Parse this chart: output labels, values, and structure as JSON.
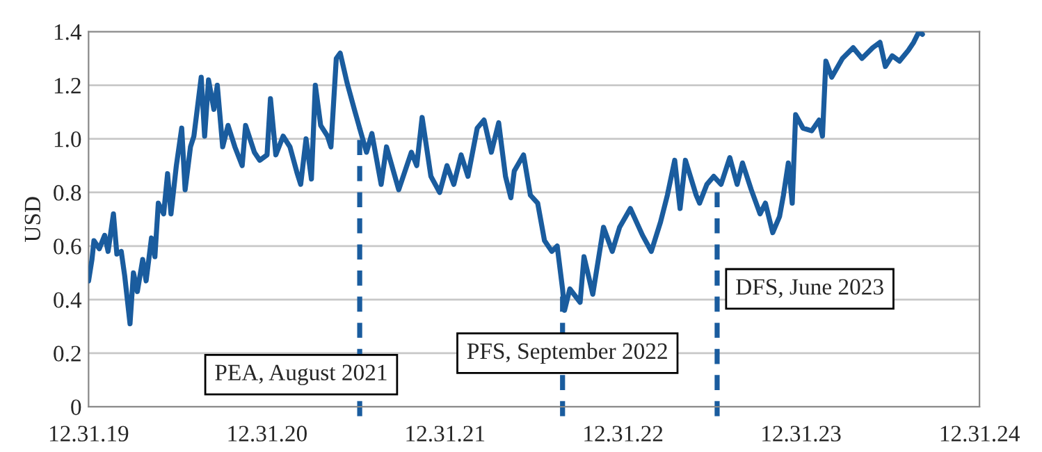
{
  "chart_data": {
    "type": "line",
    "ylabel": "USD",
    "x": [
      "2019-12-31",
      "2020-01-07",
      "2020-01-11",
      "2020-01-22",
      "2020-02-02",
      "2020-02-09",
      "2020-02-20",
      "2020-02-27",
      "2020-03-07",
      "2020-03-14",
      "2020-03-25",
      "2020-04-01",
      "2020-04-09",
      "2020-04-20",
      "2020-04-27",
      "2020-05-08",
      "2020-05-15",
      "2020-05-22",
      "2020-06-02",
      "2020-06-10",
      "2020-06-17",
      "2020-06-28",
      "2020-07-09",
      "2020-07-16",
      "2020-07-27",
      "2020-08-03",
      "2020-08-18",
      "2020-08-25",
      "2020-09-02",
      "2020-09-13",
      "2020-09-20",
      "2020-10-01",
      "2020-10-12",
      "2020-10-26",
      "2020-11-10",
      "2020-11-17",
      "2020-12-05",
      "2020-12-16",
      "2020-12-31",
      "2021-01-07",
      "2021-01-18",
      "2021-02-02",
      "2021-02-16",
      "2021-03-03",
      "2021-03-10",
      "2021-03-21",
      "2021-04-01",
      "2021-04-09",
      "2021-04-20",
      "2021-05-04",
      "2021-05-11",
      "2021-05-22",
      "2021-05-30",
      "2021-06-13",
      "2021-06-28",
      "2021-07-12",
      "2021-07-23",
      "2021-08-03",
      "2021-08-22",
      "2021-09-02",
      "2021-09-27",
      "2021-10-23",
      "2021-11-03",
      "2021-11-14",
      "2021-12-02",
      "2021-12-20",
      "2022-01-04",
      "2022-01-18",
      "2022-02-02",
      "2022-02-16",
      "2022-03-07",
      "2022-03-21",
      "2022-04-05",
      "2022-04-20",
      "2022-05-04",
      "2022-05-15",
      "2022-05-22",
      "2022-06-10",
      "2022-06-24",
      "2022-07-09",
      "2022-07-23",
      "2022-08-07",
      "2022-08-18",
      "2022-08-29",
      "2022-09-02",
      "2022-09-13",
      "2022-10-04",
      "2022-10-12",
      "2022-10-30",
      "2022-11-21",
      "2022-12-09",
      "2022-12-24",
      "2023-01-15",
      "2023-02-09",
      "2023-02-27",
      "2023-03-18",
      "2023-04-01",
      "2023-04-16",
      "2023-04-27",
      "2023-05-08",
      "2023-05-30",
      "2023-06-06",
      "2023-06-21",
      "2023-07-05",
      "2023-07-20",
      "2023-08-07",
      "2023-08-22",
      "2023-09-02",
      "2023-09-20",
      "2023-10-08",
      "2023-10-19",
      "2023-11-03",
      "2023-11-17",
      "2023-11-25",
      "2023-12-05",
      "2023-12-13",
      "2023-12-20",
      "2024-01-04",
      "2024-01-22",
      "2024-02-06",
      "2024-02-13",
      "2024-02-20",
      "2024-03-03",
      "2024-03-25",
      "2024-04-16",
      "2024-05-04",
      "2024-05-26",
      "2024-06-10",
      "2024-06-21",
      "2024-07-05",
      "2024-07-20",
      "2024-08-07",
      "2024-08-18",
      "2024-08-29",
      "2024-09-05"
    ],
    "series": [
      {
        "color": "#1a5c9e",
        "values": [
          0.47,
          0.55,
          0.62,
          0.59,
          0.64,
          0.58,
          0.72,
          0.57,
          0.58,
          0.49,
          0.31,
          0.5,
          0.43,
          0.55,
          0.47,
          0.63,
          0.56,
          0.76,
          0.72,
          0.87,
          0.72,
          0.9,
          1.04,
          0.81,
          0.97,
          1.01,
          1.23,
          1.01,
          1.22,
          1.11,
          1.2,
          0.97,
          1.05,
          0.97,
          0.9,
          1.05,
          0.95,
          0.92,
          0.94,
          1.15,
          0.94,
          1.01,
          0.97,
          0.87,
          0.83,
          1.0,
          0.85,
          1.2,
          1.05,
          1.01,
          0.97,
          1.3,
          1.32,
          1.21,
          1.11,
          1.02,
          0.95,
          1.02,
          0.83,
          0.97,
          0.81,
          0.95,
          0.9,
          1.08,
          0.86,
          0.8,
          0.9,
          0.83,
          0.94,
          0.86,
          1.04,
          1.07,
          0.95,
          1.06,
          0.86,
          0.78,
          0.88,
          0.94,
          0.79,
          0.76,
          0.62,
          0.58,
          0.6,
          0.44,
          0.36,
          0.44,
          0.39,
          0.56,
          0.42,
          0.67,
          0.58,
          0.67,
          0.74,
          0.64,
          0.58,
          0.69,
          0.79,
          0.92,
          0.74,
          0.92,
          0.79,
          0.76,
          0.83,
          0.86,
          0.83,
          0.93,
          0.83,
          0.91,
          0.81,
          0.72,
          0.76,
          0.65,
          0.71,
          0.79,
          0.91,
          0.76,
          1.09,
          1.04,
          1.03,
          1.07,
          1.01,
          1.29,
          1.23,
          1.3,
          1.34,
          1.3,
          1.34,
          1.36,
          1.27,
          1.31,
          1.29,
          1.33,
          1.36,
          1.4,
          1.39
        ]
      }
    ],
    "xlim": [
      "2019-12-31",
      "2024-12-31"
    ],
    "xticks": [
      {
        "value": "2019-12-31",
        "label": "12.31.19"
      },
      {
        "value": "2020-12-31",
        "label": "12.31.20"
      },
      {
        "value": "2021-12-31",
        "label": "12.31.21"
      },
      {
        "value": "2022-12-31",
        "label": "12.31.22"
      },
      {
        "value": "2023-12-31",
        "label": "12.31.23"
      },
      {
        "value": "2024-12-31",
        "label": "12.31.24"
      }
    ],
    "ylim": [
      0,
      1.4
    ],
    "yticks": [
      0,
      0.2,
      0.4,
      0.6,
      0.8,
      {
        "value": 1,
        "label": "1.0"
      },
      1.2,
      1.4
    ],
    "grid": "y",
    "marker": "none",
    "line_style": "solid",
    "ref_lines": [
      {
        "axis": "x",
        "value": "2021-07-09",
        "label": "PEA, August 2021",
        "color": "#1a5c9e",
        "line_style": "dashed"
      },
      {
        "axis": "x",
        "value": "2022-08-29",
        "label": "PFS, September 2022",
        "color": "#1a5c9e",
        "line_style": "dashed"
      },
      {
        "axis": "x",
        "value": "2023-07-12",
        "label": "DFS, June 2023",
        "color": "#1a5c9e",
        "line_style": "dashed"
      }
    ]
  }
}
